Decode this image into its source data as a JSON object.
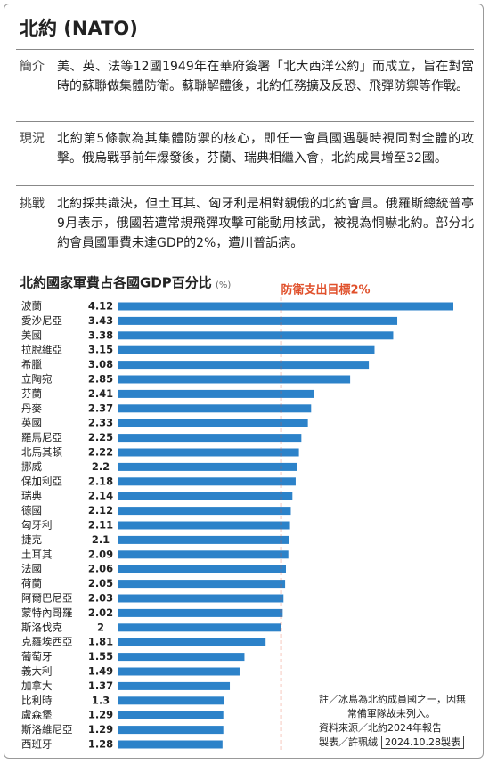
{
  "header": {
    "title": "北約 (NATO)"
  },
  "sections": [
    {
      "label": "簡介",
      "text": "美、英、法等12國1949年在華府簽署「北大西洋公約」而成立，旨在對當時的蘇聯做集體防衛。蘇聯解體後，北約任務擴及反恐、飛彈防禦等作戰。"
    },
    {
      "label": "現況",
      "text": "北約第5條款為其集體防禦的核心，即任一會員國遇襲時視同對全體的攻擊。俄烏戰爭前年爆發後，芬蘭、瑞典相繼入會，北約成員增至32國。"
    },
    {
      "label": "挑戰",
      "text": "北約採共識決，但土耳其、匈牙利是相對親俄的北約會員。俄羅斯總統普亭9月表示，俄國若遭常規飛彈攻擊可能動用核武，被視為恫嚇北約。部分北約會員國軍費未達GDP的2%，遭川普詬病。"
    }
  ],
  "chart_data": {
    "type": "bar",
    "orientation": "horizontal",
    "title": "北約國家軍費占各國GDP百分比",
    "subtitle": "(%)",
    "categories": [
      "波蘭",
      "愛沙尼亞",
      "美國",
      "拉脫維亞",
      "希臘",
      "立陶宛",
      "芬蘭",
      "丹麥",
      "英國",
      "羅馬尼亞",
      "北馬其頓",
      "挪威",
      "保加利亞",
      "瑞典",
      "德國",
      "匈牙利",
      "捷克",
      "土耳其",
      "法國",
      "荷蘭",
      "阿爾巴尼亞",
      "蒙特內哥羅",
      "斯洛伐克",
      "克羅埃西亞",
      "葡萄牙",
      "義大利",
      "加拿大",
      "比利時",
      "盧森堡",
      "斯洛維尼亞",
      "西班牙"
    ],
    "values": [
      4.12,
      3.43,
      3.38,
      3.15,
      3.08,
      2.85,
      2.41,
      2.37,
      2.33,
      2.25,
      2.22,
      2.2,
      2.18,
      2.14,
      2.12,
      2.11,
      2.1,
      2.09,
      2.06,
      2.05,
      2.03,
      2.02,
      2,
      1.81,
      1.55,
      1.49,
      1.37,
      1.3,
      1.29,
      1.29,
      1.28
    ],
    "color": "#2c82c9",
    "target": 2,
    "target_label": "防衛支出目標2%",
    "target_color": "#e0502b"
  },
  "notes": {
    "note": "註／冰島為北約成員國之一，因無常備軍隊故未列入。",
    "source": "資料來源／北約2024年報告",
    "author": "製表／許珮絨",
    "date": "2024.10.28製表"
  }
}
